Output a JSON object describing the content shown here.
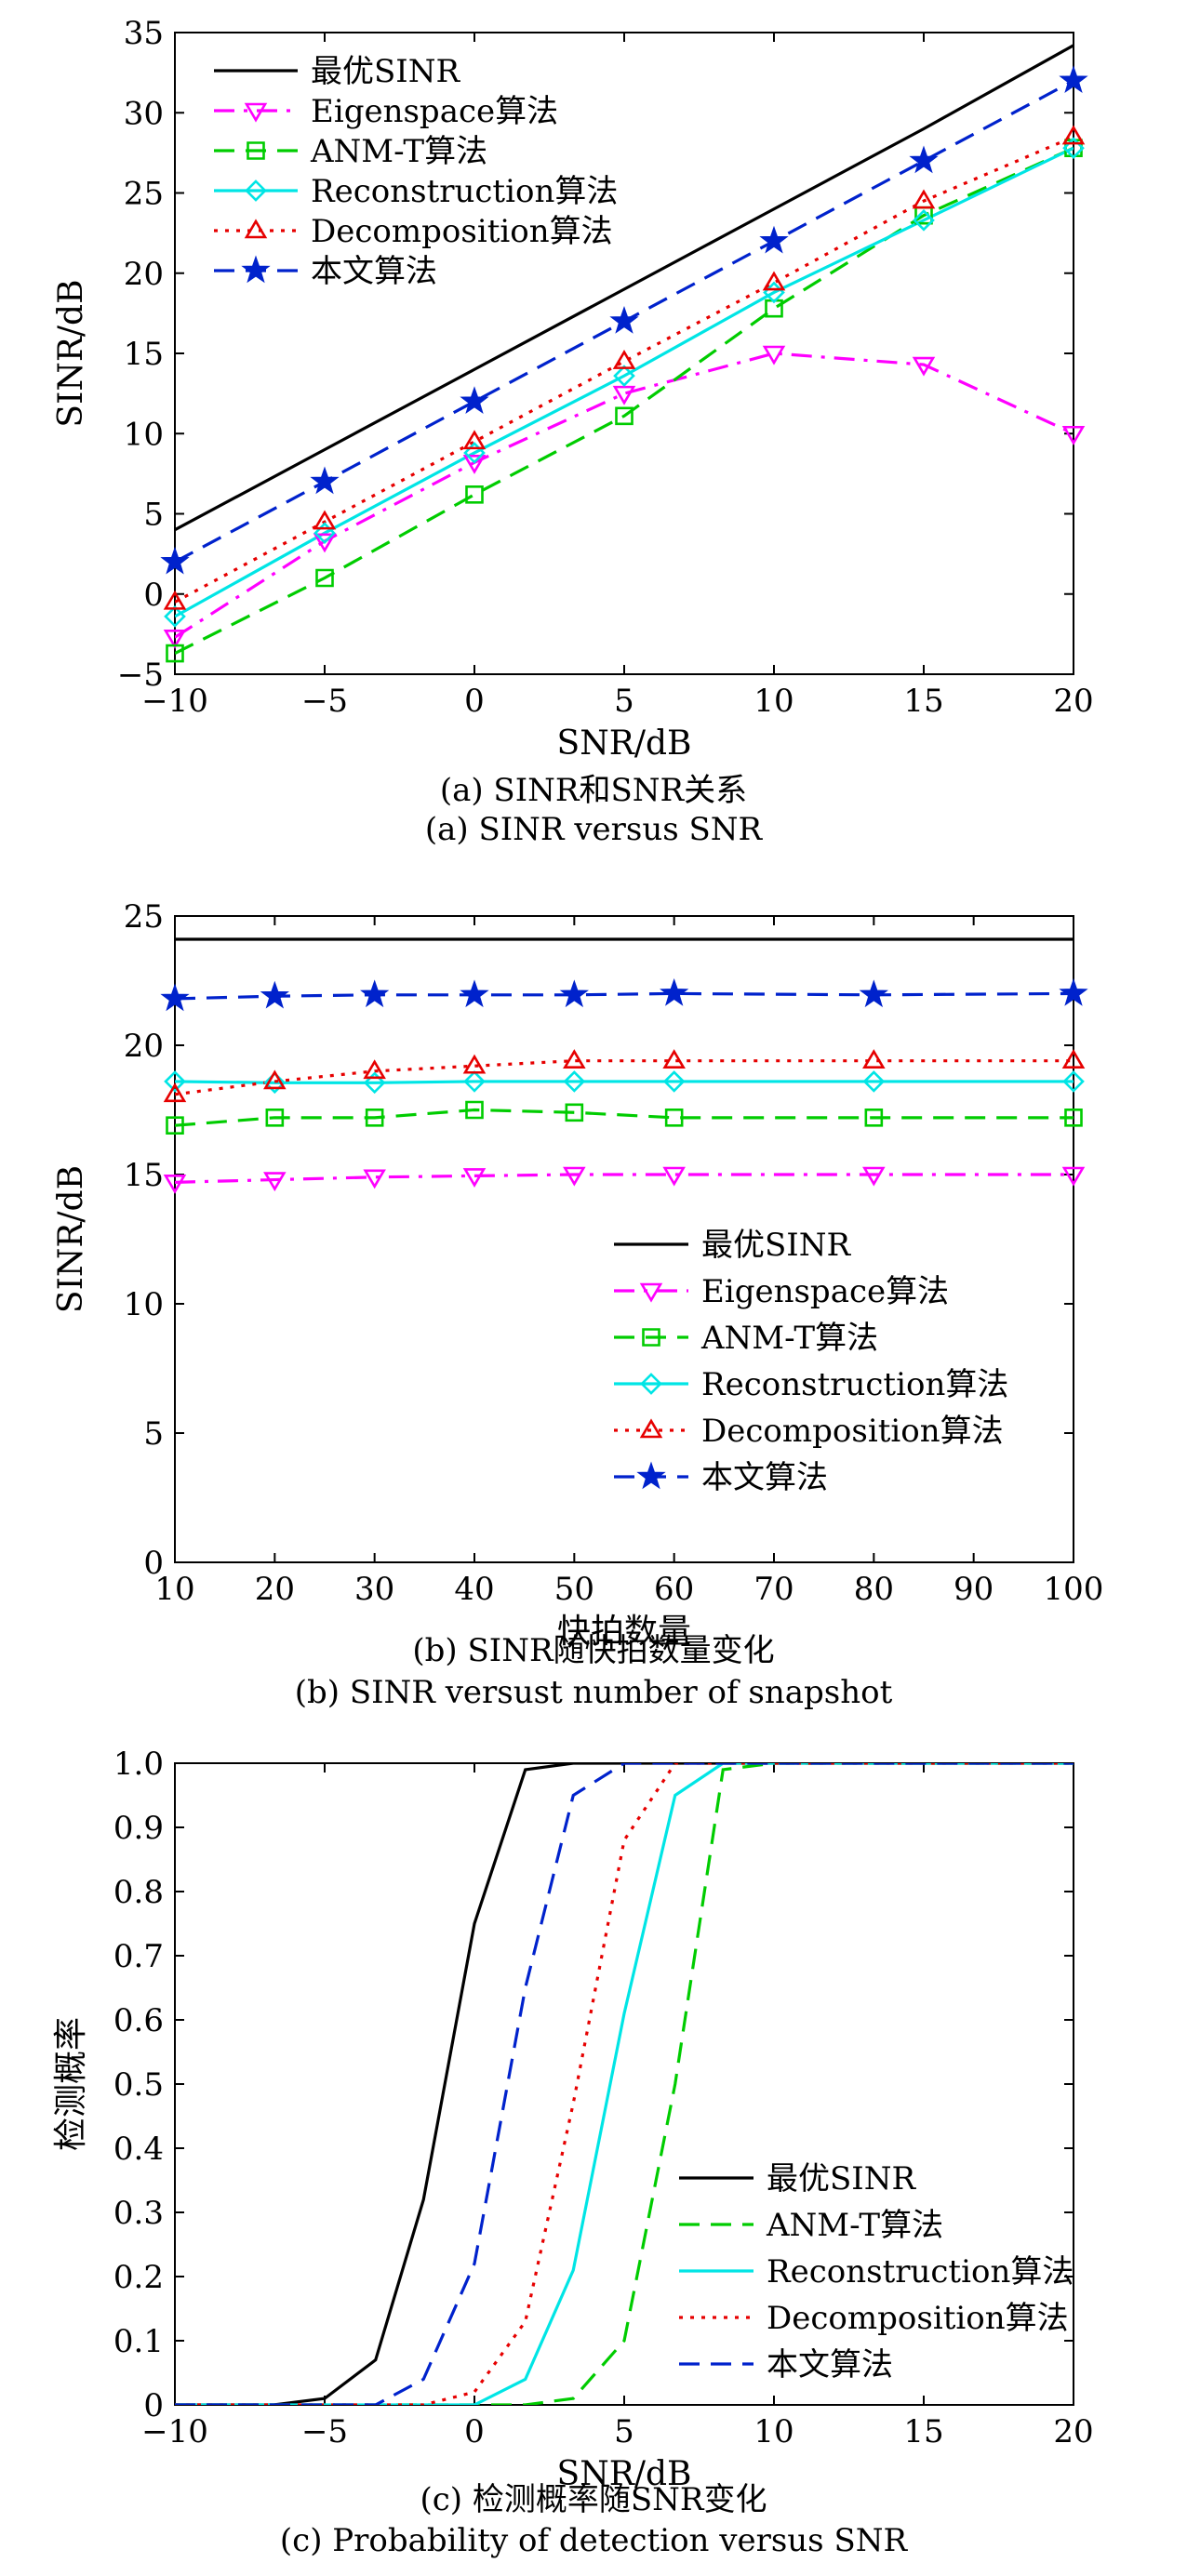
{
  "chart_data": [
    {
      "type": "line",
      "caption_cn": "(a) SINR和SNR关系",
      "caption_en": "(a) SINR versus SNR",
      "xlabel": "SNR/dB",
      "ylabel": "SINR/dB",
      "xlim": [
        -10,
        20
      ],
      "ylim": [
        -5,
        35
      ],
      "xticks": [
        -10,
        -5,
        0,
        5,
        10,
        15,
        20
      ],
      "yticks": [
        -5,
        0,
        5,
        10,
        15,
        20,
        25,
        30,
        35
      ],
      "x": [
        -10,
        -5,
        0,
        5,
        10,
        15,
        20
      ],
      "legend_position": "top-left",
      "series": [
        {
          "name": "最优SINR",
          "color": "#000000",
          "dash": "solid",
          "marker": "none",
          "values": [
            4,
            9,
            14,
            19,
            24,
            29,
            34.2
          ]
        },
        {
          "name": "Eigenspace算法",
          "color": "#ff00ff",
          "dash": "dashdot",
          "marker": "triangle-down",
          "values": [
            -2.7,
            3.3,
            8.2,
            12.5,
            15,
            14.3,
            10
          ]
        },
        {
          "name": "ANM-T算法",
          "color": "#00cc00",
          "dash": "dashed",
          "marker": "square",
          "values": [
            -3.7,
            1,
            6.2,
            11.1,
            17.8,
            23.6,
            27.8
          ]
        },
        {
          "name": "Reconstruction算法",
          "color": "#00e5e5",
          "dash": "solid",
          "marker": "diamond",
          "values": [
            -1.4,
            3.8,
            8.8,
            13.6,
            18.8,
            23.3,
            27.8
          ]
        },
        {
          "name": "Decomposition算法",
          "color": "#e60000",
          "dash": "dotted",
          "marker": "triangle-up",
          "values": [
            -0.5,
            4.5,
            9.5,
            14.5,
            19.4,
            24.5,
            28.5
          ]
        },
        {
          "name": "本文算法",
          "color": "#0022cc",
          "dash": "dashed",
          "marker": "star",
          "values": [
            2,
            7,
            12,
            17,
            22,
            27,
            32
          ]
        }
      ]
    },
    {
      "type": "line",
      "caption_cn": "(b) SINR随快拍数量变化",
      "caption_en": "(b) SINR versust number of snapshot",
      "xlabel": "快拍数量",
      "ylabel": "SINR/dB",
      "xlim": [
        10,
        100
      ],
      "ylim": [
        0,
        25
      ],
      "xticks": [
        10,
        20,
        30,
        40,
        50,
        60,
        70,
        80,
        90,
        100
      ],
      "yticks": [
        0,
        5,
        10,
        15,
        20,
        25
      ],
      "x": [
        10,
        20,
        30,
        40,
        50,
        60,
        80,
        100
      ],
      "legend_position": "center-right",
      "series": [
        {
          "name": "最优SINR",
          "color": "#000000",
          "dash": "solid",
          "marker": "none",
          "values": [
            24.1,
            24.1,
            24.1,
            24.1,
            24.1,
            24.1,
            24.1,
            24.1
          ]
        },
        {
          "name": "Eigenspace算法",
          "color": "#ff00ff",
          "dash": "dashdot",
          "marker": "triangle-down",
          "values": [
            14.7,
            14.8,
            14.9,
            14.95,
            15,
            15,
            15,
            15
          ]
        },
        {
          "name": "ANM-T算法",
          "color": "#00cc00",
          "dash": "dashed",
          "marker": "square",
          "values": [
            16.9,
            17.2,
            17.2,
            17.5,
            17.4,
            17.2,
            17.2,
            17.2
          ]
        },
        {
          "name": "Reconstruction算法",
          "color": "#00e5e5",
          "dash": "solid",
          "marker": "diamond",
          "values": [
            18.6,
            18.55,
            18.55,
            18.6,
            18.6,
            18.6,
            18.6,
            18.6
          ]
        },
        {
          "name": "Decomposition算法",
          "color": "#e60000",
          "dash": "dotted",
          "marker": "triangle-up",
          "values": [
            18.1,
            18.6,
            19,
            19.2,
            19.4,
            19.4,
            19.4,
            19.4
          ]
        },
        {
          "name": "本文算法",
          "color": "#0022cc",
          "dash": "dashed",
          "marker": "star",
          "values": [
            21.8,
            21.9,
            21.95,
            21.95,
            21.95,
            22,
            21.95,
            22
          ]
        }
      ]
    },
    {
      "type": "line",
      "caption_cn": "(c) 检测概率随SNR变化",
      "caption_en": "(c) Probability of detection versus SNR",
      "xlabel": "SNR/dB",
      "ylabel": "检测概率",
      "xlim": [
        -10,
        20
      ],
      "ylim": [
        0,
        1
      ],
      "xticks": [
        -10,
        -5,
        0,
        5,
        10,
        15,
        20
      ],
      "yticks": [
        "0",
        "0.1",
        "0.2",
        "0.3",
        "0.4",
        "0.5",
        "0.6",
        "0.7",
        "0.8",
        "0.9",
        "1.0"
      ],
      "legend_position": "bottom-right",
      "series": [
        {
          "name": "最优SINR",
          "color": "#000000",
          "dash": "solid",
          "marker": "none",
          "points": [
            [
              -10,
              0
            ],
            [
              -6.7,
              0
            ],
            [
              -5,
              0.01
            ],
            [
              -3.3,
              0.07
            ],
            [
              -1.7,
              0.32
            ],
            [
              0,
              0.75
            ],
            [
              1.7,
              0.99
            ],
            [
              3.3,
              1
            ],
            [
              20,
              1
            ]
          ]
        },
        {
          "name": "ANM-T算法",
          "color": "#00cc00",
          "dash": "dashed",
          "marker": "none",
          "points": [
            [
              -10,
              0
            ],
            [
              1.7,
              0
            ],
            [
              3.3,
              0.01
            ],
            [
              5,
              0.1
            ],
            [
              6.7,
              0.5
            ],
            [
              8.3,
              0.99
            ],
            [
              10,
              1
            ],
            [
              20,
              1
            ]
          ]
        },
        {
          "name": "Reconstruction算法",
          "color": "#00e5e5",
          "dash": "solid",
          "marker": "none",
          "points": [
            [
              -10,
              0
            ],
            [
              0,
              0
            ],
            [
              1.7,
              0.04
            ],
            [
              3.3,
              0.21
            ],
            [
              5,
              0.61
            ],
            [
              6.7,
              0.95
            ],
            [
              8.3,
              1
            ],
            [
              20,
              1
            ]
          ]
        },
        {
          "name": "Decomposition算法",
          "color": "#e60000",
          "dash": "dotted",
          "marker": "none",
          "points": [
            [
              -10,
              0
            ],
            [
              -1.7,
              0
            ],
            [
              0,
              0.02
            ],
            [
              1.7,
              0.13
            ],
            [
              3.3,
              0.47
            ],
            [
              5,
              0.88
            ],
            [
              6.7,
              1
            ],
            [
              20,
              1
            ]
          ]
        },
        {
          "name": "本文算法",
          "color": "#0022cc",
          "dash": "dashed",
          "marker": "none",
          "points": [
            [
              -10,
              0
            ],
            [
              -3.3,
              0
            ],
            [
              -1.7,
              0.04
            ],
            [
              0,
              0.22
            ],
            [
              1.7,
              0.65
            ],
            [
              3.3,
              0.95
            ],
            [
              5,
              1
            ],
            [
              20,
              1
            ]
          ]
        }
      ]
    }
  ]
}
